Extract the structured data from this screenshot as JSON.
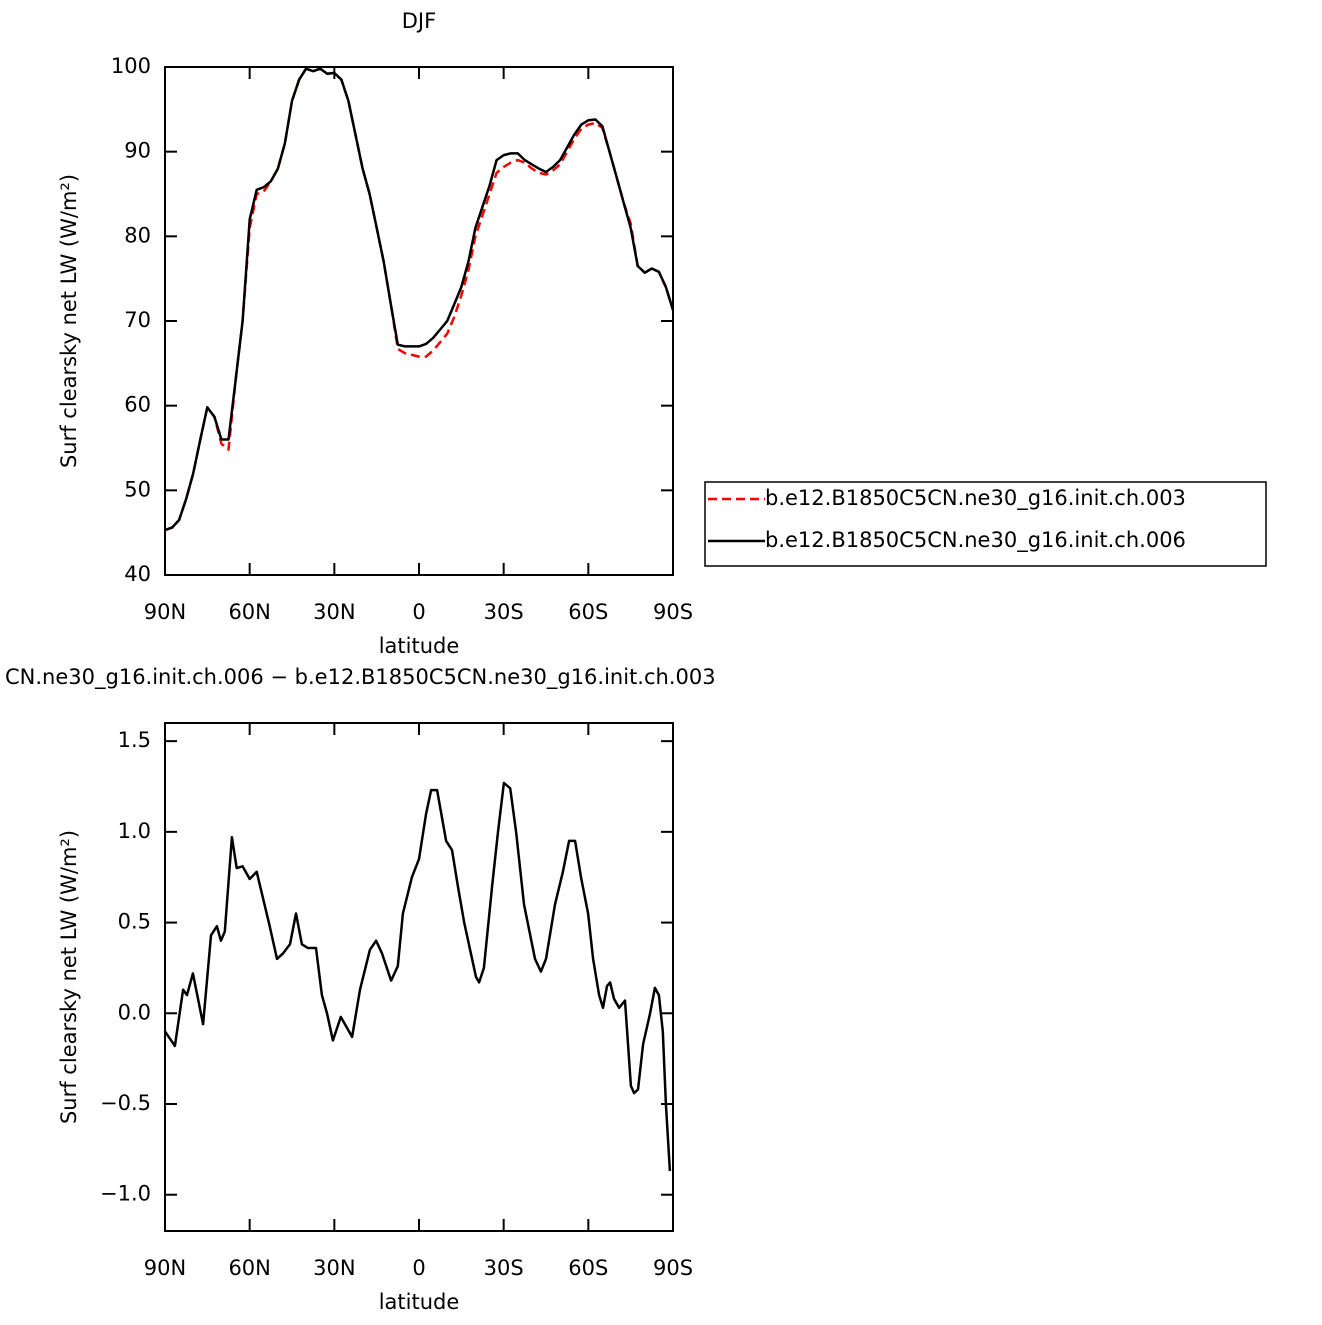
{
  "chart_data": [
    {
      "type": "line",
      "title": "DJF",
      "xlabel": "latitude",
      "ylabel": "Surf clearsky net LW (W/m²)",
      "xlim": [
        90,
        -90
      ],
      "ylim": [
        40,
        100
      ],
      "xticks": [
        {
          "value": 90,
          "label": "90N"
        },
        {
          "value": 60,
          "label": "60N"
        },
        {
          "value": 30,
          "label": "30N"
        },
        0,
        {
          "value": -30,
          "label": "30S"
        },
        {
          "value": -60,
          "label": "60S"
        },
        {
          "value": -90,
          "label": "90S"
        }
      ],
      "yticks": [
        40,
        50,
        60,
        70,
        80,
        90,
        100
      ],
      "x": [
        90,
        87.5,
        85,
        82.5,
        80,
        77.5,
        75,
        72.5,
        70,
        67.5,
        65,
        62.5,
        60,
        57.5,
        55,
        52.5,
        50,
        47.5,
        45,
        42.5,
        40,
        37.5,
        35,
        32.5,
        30,
        27.5,
        25,
        22.5,
        20,
        17.5,
        15,
        12.5,
        10,
        7.5,
        5,
        2.5,
        0,
        -2.5,
        -5,
        -7.5,
        -10,
        -12.5,
        -15,
        -17.5,
        -20,
        -22.5,
        -25,
        -27.5,
        -30,
        -32.5,
        -35,
        -37.5,
        -40,
        -42.5,
        -45,
        -47.5,
        -50,
        -52.5,
        -55,
        -57.5,
        -60,
        -62.5,
        -65,
        -67.5,
        -70,
        -72.5,
        -75,
        -77.5,
        -80,
        -82.5,
        -85,
        -87.5,
        -90
      ],
      "series": [
        {
          "name": "b.e12.B1850C5CN.ne30_g16.init.ch.003",
          "color": "#ff0000",
          "dash": true,
          "values": [
            45.3,
            45.6,
            46.5,
            49,
            52,
            56,
            59.8,
            58.7,
            55.5,
            54.8,
            63,
            70,
            81,
            85,
            85.3,
            86.5,
            88,
            91,
            96,
            98.5,
            99.8,
            99.5,
            99.8,
            99.2,
            99.3,
            98.5,
            96,
            92,
            88,
            85,
            81,
            77,
            72,
            66.7,
            66.2,
            66,
            65.8,
            65.8,
            66.5,
            67.5,
            68.5,
            70.5,
            73,
            76,
            80,
            82.5,
            85,
            87.5,
            88.2,
            88.7,
            89,
            88.7,
            88,
            87.5,
            87.3,
            87.8,
            88.5,
            90,
            91.5,
            92.7,
            93.2,
            93.4,
            92.8,
            90,
            87,
            84,
            81.5,
            76.5,
            75.7,
            76.2,
            75.8,
            74,
            71.3
          ]
        },
        {
          "name": "b.e12.B1850C5CN.ne30_g16.init.ch.006",
          "color": "#000000",
          "dash": false,
          "values": [
            45.3,
            45.6,
            46.5,
            49,
            52,
            56,
            59.8,
            58.7,
            56,
            56,
            63,
            70,
            82,
            85.5,
            85.8,
            86.5,
            88,
            91,
            96,
            98.5,
            99.8,
            99.5,
            99.8,
            99.2,
            99.3,
            98.5,
            96,
            92,
            88,
            85,
            81,
            77,
            72,
            67.2,
            67,
            67,
            67,
            67.3,
            68,
            69,
            70,
            72,
            74,
            77,
            81,
            83.5,
            86,
            89,
            89.6,
            89.8,
            89.8,
            89,
            88.5,
            88,
            87.6,
            88.2,
            89,
            90.5,
            92,
            93.2,
            93.7,
            93.8,
            93,
            90,
            87,
            84,
            81,
            76.5,
            75.7,
            76.2,
            75.8,
            74,
            71.3
          ]
        }
      ]
    },
    {
      "type": "line",
      "title": "CN.ne30_g16.init.ch.006 − b.e12.B1850C5CN.ne30_g16.init.ch.003",
      "xlabel": "latitude",
      "ylabel": "Surf clearsky net LW (W/m²)",
      "xlim": [
        90,
        -90
      ],
      "ylim": [
        -1.2,
        1.6
      ],
      "xticks": [
        {
          "value": 90,
          "label": "90N"
        },
        {
          "value": 60,
          "label": "60N"
        },
        {
          "value": 30,
          "label": "30N"
        },
        0,
        {
          "value": -30,
          "label": "30S"
        },
        {
          "value": -60,
          "label": "60S"
        },
        {
          "value": -90,
          "label": "90S"
        }
      ],
      "yticks": [
        {
          "value": -1,
          "label": "−1.0"
        },
        {
          "value": -0.5,
          "label": "−0.5"
        },
        {
          "value": 0,
          "label": "0.0"
        },
        0.5,
        {
          "value": 1,
          "label": "1.0"
        },
        1.5
      ],
      "x": [
        90,
        86.5,
        83.6,
        82.2,
        80.1,
        76.5,
        73.7,
        71.6,
        70.2,
        68.8,
        66.3,
        64.6,
        62.5,
        60,
        57.5,
        52.9,
        50.3,
        48.2,
        45.7,
        43.6,
        41.5,
        39.4,
        36.5,
        34.4,
        32.6,
        30.5,
        27.7,
        23.7,
        20.9,
        17.4,
        15.2,
        13.1,
        9.9,
        7.5,
        5.7,
        2.5,
        0,
        -2.5,
        -4.3,
        -6.4,
        -9.6,
        -11.7,
        -13.8,
        -16,
        -18.1,
        -20.2,
        -21.3,
        -23,
        -25.9,
        -28,
        -30.1,
        -32.3,
        -34.4,
        -37.2,
        -41.1,
        -43.2,
        -45,
        -48.2,
        -51,
        -53.2,
        -55.3,
        -57.4,
        -59.9,
        -61.7,
        -63.8,
        -65.2,
        -66.6,
        -67.7,
        -69.1,
        -70.9,
        -73,
        -75.1,
        -76.2,
        -77.6,
        -79.4,
        -81.9,
        -83.6,
        -85,
        -86.4,
        -87.5,
        -88.9
      ],
      "series": [
        {
          "color": "#000000",
          "dash": false,
          "values": [
            -0.1,
            -0.18,
            0.13,
            0.1,
            0.22,
            -0.06,
            0.43,
            0.48,
            0.4,
            0.45,
            0.97,
            0.8,
            0.81,
            0.74,
            0.78,
            0.48,
            0.3,
            0.33,
            0.38,
            0.55,
            0.38,
            0.36,
            0.36,
            0.1,
            0,
            -0.15,
            -0.02,
            -0.13,
            0.13,
            0.35,
            0.4,
            0.33,
            0.18,
            0.26,
            0.55,
            0.75,
            0.85,
            1.1,
            1.23,
            1.23,
            0.95,
            0.9,
            0.7,
            0.5,
            0.35,
            0.2,
            0.17,
            0.25,
            0.7,
            1,
            1.27,
            1.24,
            1,
            0.6,
            0.3,
            0.23,
            0.3,
            0.6,
            0.78,
            0.95,
            0.95,
            0.75,
            0.55,
            0.3,
            0.1,
            0.03,
            0.15,
            0.17,
            0.08,
            0.03,
            0.07,
            -0.4,
            -0.44,
            -0.42,
            -0.17,
            0,
            0.14,
            0.1,
            -0.1,
            -0.5,
            -0.87
          ]
        }
      ]
    }
  ]
}
